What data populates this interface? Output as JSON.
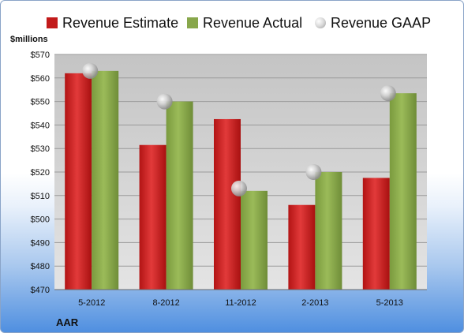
{
  "chart_data": {
    "type": "bar",
    "categories": [
      "5-2012",
      "8-2012",
      "11-2012",
      "2-2013",
      "5-2013"
    ],
    "series": [
      {
        "name": "Revenue Estimate",
        "type": "bar",
        "color": "#c21a1a",
        "values": [
          562,
          531.5,
          542.5,
          506,
          517.5
        ]
      },
      {
        "name": "Revenue Actual",
        "type": "bar",
        "color": "#88a74b",
        "values": [
          563,
          550,
          512,
          520,
          553.5
        ]
      },
      {
        "name": "Revenue GAAP",
        "type": "scatter",
        "color": "#c0c0c0",
        "values": [
          563,
          550,
          513,
          520,
          553.5
        ]
      }
    ],
    "ylabel": "$millions",
    "ylim": [
      470,
      570
    ],
    "yticks": [
      470,
      480,
      490,
      500,
      510,
      520,
      530,
      540,
      550,
      560,
      570
    ],
    "ytick_labels": [
      "$470",
      "$480",
      "$490",
      "$500",
      "$510",
      "$520",
      "$530",
      "$540",
      "$550",
      "$560",
      "$570"
    ],
    "grid": true,
    "legend_position": "top",
    "company": "AAR"
  }
}
